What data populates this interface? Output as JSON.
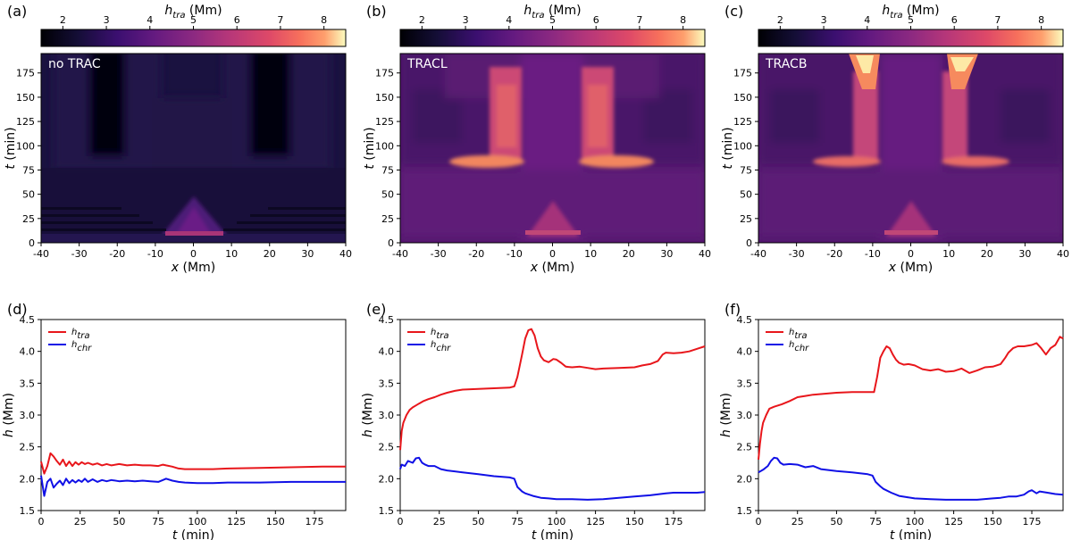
{
  "chart_data": [
    {
      "panel": "(a)",
      "type": "heatmap",
      "tag": "no TRAC",
      "colorbar": {
        "label_main": "h",
        "label_sub": "tra",
        "label_unit": " (Mm)",
        "range": [
          1.5,
          8.5
        ],
        "ticks": [
          2,
          3,
          4,
          5,
          6,
          7,
          8
        ]
      },
      "xlabel": "x",
      "xunit": " (Mm)",
      "ylabel": "t",
      "yunit": " (min)",
      "xlim": [
        -40,
        40
      ],
      "ylim": [
        0,
        195
      ],
      "xticks": [
        -40,
        -30,
        -20,
        -10,
        0,
        10,
        20,
        30,
        40
      ],
      "yticks": [
        0,
        25,
        50,
        75,
        100,
        125,
        150,
        175
      ]
    },
    {
      "panel": "(b)",
      "type": "heatmap",
      "tag": "TRACL",
      "colorbar": {
        "label_main": "h",
        "label_sub": "tra",
        "label_unit": " (Mm)",
        "range": [
          1.5,
          8.5
        ],
        "ticks": [
          2,
          3,
          4,
          5,
          6,
          7,
          8
        ]
      },
      "xlabel": "x",
      "xunit": " (Mm)",
      "ylabel": "t",
      "yunit": " (min)",
      "xlim": [
        -40,
        40
      ],
      "ylim": [
        0,
        195
      ],
      "xticks": [
        -40,
        -30,
        -20,
        -10,
        0,
        10,
        20,
        30,
        40
      ],
      "yticks": [
        0,
        25,
        50,
        75,
        100,
        125,
        150,
        175
      ]
    },
    {
      "panel": "(c)",
      "type": "heatmap",
      "tag": "TRACB",
      "colorbar": {
        "label_main": "h",
        "label_sub": "tra",
        "label_unit": " (Mm)",
        "range": [
          1.5,
          8.5
        ],
        "ticks": [
          2,
          3,
          4,
          5,
          6,
          7,
          8
        ]
      },
      "xlabel": "x",
      "xunit": " (Mm)",
      "ylabel": "t",
      "yunit": " (min)",
      "xlim": [
        -40,
        40
      ],
      "ylim": [
        0,
        195
      ],
      "xticks": [
        -40,
        -30,
        -20,
        -10,
        0,
        10,
        20,
        30,
        40
      ],
      "yticks": [
        0,
        25,
        50,
        75,
        100,
        125,
        150,
        175
      ]
    },
    {
      "panel": "(d)",
      "type": "line",
      "xlabel": "t",
      "xunit": " (min)",
      "ylabel": "h",
      "yunit": " (Mm)",
      "xlim": [
        0,
        195
      ],
      "ylim": [
        1.5,
        4.5
      ],
      "xticks": [
        0,
        25,
        50,
        75,
        100,
        125,
        150,
        175
      ],
      "yticks": [
        1.5,
        2.0,
        2.5,
        3.0,
        3.5,
        4.0,
        4.5
      ],
      "series": [
        {
          "name_main": "h",
          "name_sub": "tra",
          "color": "#e8161b",
          "x": [
            0,
            2,
            4,
            6,
            8,
            10,
            12,
            14,
            16,
            18,
            20,
            22,
            24,
            26,
            28,
            30,
            33,
            36,
            39,
            42,
            45,
            50,
            55,
            60,
            65,
            70,
            75,
            78,
            80,
            84,
            88,
            92,
            100,
            110,
            120,
            140,
            160,
            180,
            195
          ],
          "y": [
            2.27,
            2.08,
            2.2,
            2.4,
            2.35,
            2.28,
            2.22,
            2.3,
            2.2,
            2.27,
            2.2,
            2.26,
            2.22,
            2.26,
            2.23,
            2.25,
            2.22,
            2.24,
            2.21,
            2.23,
            2.21,
            2.23,
            2.21,
            2.22,
            2.21,
            2.21,
            2.2,
            2.22,
            2.21,
            2.19,
            2.16,
            2.15,
            2.15,
            2.15,
            2.16,
            2.17,
            2.18,
            2.19,
            2.19
          ]
        },
        {
          "name_main": "h",
          "name_sub": "chr",
          "color": "#1010e6",
          "x": [
            0,
            2,
            4,
            6,
            8,
            10,
            12,
            14,
            16,
            18,
            20,
            22,
            24,
            26,
            28,
            30,
            33,
            36,
            39,
            42,
            45,
            50,
            55,
            60,
            65,
            70,
            75,
            78,
            80,
            84,
            88,
            92,
            100,
            110,
            120,
            140,
            160,
            180,
            195
          ],
          "y": [
            2.05,
            1.73,
            1.95,
            2.0,
            1.86,
            1.92,
            1.97,
            1.9,
            2.0,
            1.93,
            1.98,
            1.94,
            1.98,
            1.95,
            2.0,
            1.95,
            1.99,
            1.95,
            1.98,
            1.96,
            1.98,
            1.96,
            1.97,
            1.96,
            1.97,
            1.96,
            1.95,
            1.98,
            2.0,
            1.97,
            1.95,
            1.94,
            1.93,
            1.93,
            1.94,
            1.94,
            1.95,
            1.95,
            1.95
          ]
        }
      ]
    },
    {
      "panel": "(e)",
      "type": "line",
      "xlabel": "t",
      "xunit": " (min)",
      "ylabel": "h",
      "yunit": " (Mm)",
      "xlim": [
        0,
        195
      ],
      "ylim": [
        1.5,
        4.5
      ],
      "xticks": [
        0,
        25,
        50,
        75,
        100,
        125,
        150,
        175
      ],
      "yticks": [
        1.5,
        2.0,
        2.5,
        3.0,
        3.5,
        4.0,
        4.5
      ],
      "series": [
        {
          "name_main": "h",
          "name_sub": "tra",
          "color": "#e8161b",
          "x": [
            0,
            1,
            2,
            4,
            6,
            8,
            10,
            12,
            15,
            18,
            22,
            26,
            30,
            35,
            40,
            50,
            60,
            70,
            73,
            75,
            78,
            80,
            82,
            84,
            86,
            88,
            90,
            92,
            95,
            98,
            100,
            103,
            106,
            110,
            115,
            120,
            125,
            130,
            140,
            150,
            155,
            160,
            165,
            168,
            170,
            175,
            180,
            185,
            190,
            195
          ],
          "y": [
            2.45,
            2.75,
            2.88,
            3.0,
            3.08,
            3.12,
            3.15,
            3.18,
            3.22,
            3.25,
            3.28,
            3.32,
            3.35,
            3.38,
            3.4,
            3.41,
            3.42,
            3.43,
            3.45,
            3.6,
            3.95,
            4.2,
            4.33,
            4.35,
            4.25,
            4.05,
            3.92,
            3.86,
            3.83,
            3.88,
            3.87,
            3.82,
            3.76,
            3.75,
            3.76,
            3.74,
            3.72,
            3.73,
            3.74,
            3.75,
            3.78,
            3.8,
            3.85,
            3.95,
            3.98,
            3.97,
            3.98,
            4.0,
            4.04,
            4.08
          ]
        },
        {
          "name_main": "h",
          "name_sub": "chr",
          "color": "#1010e6",
          "x": [
            0,
            1,
            3,
            5,
            8,
            10,
            12,
            14,
            16,
            18,
            22,
            26,
            30,
            40,
            50,
            60,
            70,
            73,
            75,
            78,
            80,
            85,
            90,
            95,
            100,
            110,
            120,
            130,
            140,
            150,
            160,
            170,
            175,
            180,
            190,
            195
          ],
          "y": [
            2.15,
            2.22,
            2.2,
            2.28,
            2.25,
            2.32,
            2.33,
            2.25,
            2.22,
            2.2,
            2.2,
            2.15,
            2.13,
            2.1,
            2.07,
            2.04,
            2.02,
            2.0,
            1.87,
            1.8,
            1.77,
            1.73,
            1.7,
            1.69,
            1.68,
            1.68,
            1.67,
            1.68,
            1.7,
            1.72,
            1.74,
            1.77,
            1.78,
            1.78,
            1.78,
            1.79
          ]
        }
      ]
    },
    {
      "panel": "(f)",
      "type": "line",
      "xlabel": "t",
      "xunit": " (min)",
      "ylabel": "h",
      "yunit": " (Mm)",
      "xlim": [
        0,
        195
      ],
      "ylim": [
        1.5,
        4.5
      ],
      "xticks": [
        0,
        25,
        50,
        75,
        100,
        125,
        150,
        175
      ],
      "yticks": [
        1.5,
        2.0,
        2.5,
        3.0,
        3.5,
        4.0,
        4.5
      ],
      "series": [
        {
          "name_main": "h",
          "name_sub": "tra",
          "color": "#e8161b",
          "x": [
            0,
            1,
            2,
            3,
            5,
            7,
            10,
            15,
            20,
            25,
            30,
            35,
            40,
            50,
            60,
            70,
            74,
            76,
            78,
            80,
            82,
            84,
            86,
            88,
            90,
            93,
            96,
            100,
            105,
            110,
            115,
            120,
            125,
            130,
            135,
            140,
            145,
            150,
            155,
            158,
            160,
            163,
            166,
            170,
            175,
            178,
            181,
            184,
            187,
            190,
            193,
            195
          ],
          "y": [
            2.3,
            2.55,
            2.75,
            2.88,
            3.0,
            3.1,
            3.13,
            3.17,
            3.22,
            3.28,
            3.3,
            3.32,
            3.33,
            3.35,
            3.36,
            3.36,
            3.36,
            3.6,
            3.9,
            4.0,
            4.08,
            4.05,
            3.95,
            3.87,
            3.82,
            3.79,
            3.8,
            3.78,
            3.72,
            3.7,
            3.72,
            3.68,
            3.69,
            3.73,
            3.66,
            3.7,
            3.75,
            3.76,
            3.8,
            3.9,
            3.98,
            4.05,
            4.08,
            4.08,
            4.1,
            4.13,
            4.05,
            3.95,
            4.05,
            4.1,
            4.23,
            4.2
          ]
        },
        {
          "name_main": "h",
          "name_sub": "chr",
          "color": "#1010e6",
          "x": [
            0,
            3,
            6,
            8,
            10,
            12,
            14,
            16,
            20,
            25,
            30,
            35,
            40,
            50,
            60,
            70,
            73,
            75,
            78,
            80,
            85,
            90,
            95,
            100,
            110,
            120,
            130,
            140,
            150,
            155,
            160,
            165,
            170,
            173,
            175,
            178,
            180,
            185,
            190,
            195
          ],
          "y": [
            2.1,
            2.14,
            2.2,
            2.28,
            2.33,
            2.32,
            2.25,
            2.22,
            2.23,
            2.22,
            2.18,
            2.2,
            2.15,
            2.12,
            2.1,
            2.07,
            2.05,
            1.95,
            1.88,
            1.84,
            1.78,
            1.73,
            1.71,
            1.69,
            1.68,
            1.67,
            1.67,
            1.67,
            1.69,
            1.7,
            1.72,
            1.72,
            1.75,
            1.8,
            1.82,
            1.77,
            1.8,
            1.78,
            1.76,
            1.75
          ]
        }
      ]
    }
  ]
}
